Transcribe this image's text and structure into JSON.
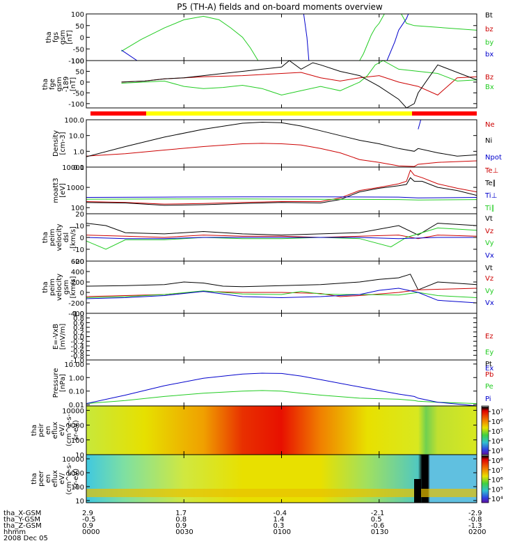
{
  "title": "P5 (TH-A) fields and on-board moments overview",
  "footer": {
    "rows": [
      {
        "label": "tha_X-GSM",
        "values": [
          "2.9",
          "1.7",
          "-0.4",
          "-2.1",
          "-2.9"
        ]
      },
      {
        "label": "tha_Y-GSM",
        "values": [
          "-0.5",
          "0.8",
          "1.4",
          "0.5",
          "-0.8"
        ]
      },
      {
        "label": "tha_Z-GSM",
        "values": [
          "0.9",
          "0.9",
          "0.3",
          "-0.6",
          "-1.3"
        ]
      },
      {
        "label": "hhmm",
        "values": [
          "0000",
          "0030",
          "0100",
          "0130",
          "0200"
        ]
      }
    ],
    "date": "2008 Dec 05"
  },
  "chart_data": [
    {
      "type": "line",
      "panel": 1,
      "ylabel": [
        "tha",
        "fgs",
        "gsm",
        "[nT]"
      ],
      "ylim": [
        -100,
        100
      ],
      "yticks": [
        "100",
        "50",
        "0",
        "-50",
        "-100"
      ],
      "series": [
        {
          "name": "Bt",
          "color": "#000000",
          "x": [
            0,
            100
          ],
          "y": [
            null,
            null
          ]
        },
        {
          "name": "bz",
          "color": "#cc0000",
          "x": [
            0,
            100
          ],
          "y": [
            null,
            null
          ]
        },
        {
          "name": "by",
          "color": "#22cc22",
          "x": [
            9,
            14,
            20,
            25,
            30,
            34,
            37,
            40,
            42,
            44,
            70,
            71,
            72,
            73,
            74,
            75,
            76,
            77,
            78,
            79,
            80,
            82,
            84,
            100
          ],
          "y": [
            -60,
            -10,
            40,
            75,
            90,
            75,
            40,
            0,
            -45,
            -100,
            -100,
            -70,
            -30,
            10,
            40,
            60,
            90,
            120,
            120,
            120,
            120,
            60,
            50,
            30
          ]
        },
        {
          "name": "bx",
          "color": "#0000cc",
          "x": [
            9,
            13,
            55,
            55.5,
            56,
            56.5,
            57,
            76,
            77,
            78,
            79,
            80,
            82,
            83,
            84,
            85,
            86,
            87,
            88,
            89,
            90
          ],
          "y": [
            -55,
            -100,
            null,
            120,
            60,
            0,
            -100,
            null,
            -100,
            -60,
            -20,
            30,
            80,
            120,
            null,
            null,
            null,
            null,
            null,
            null,
            null
          ]
        }
      ]
    },
    {
      "type": "line",
      "panel": 2,
      "ylabel": [
        "tha",
        "fge",
        "gsm",
        "-189",
        "[nT]"
      ],
      "ylim": [
        -120,
        100
      ],
      "yticks": [
        "100",
        "50",
        "0",
        "-50",
        "-100"
      ],
      "series": [
        {
          "name": "Bz",
          "color": "#cc0000",
          "x": [
            9,
            15,
            20,
            30,
            40,
            50,
            55,
            60,
            65,
            70,
            75,
            80,
            85,
            90,
            95,
            100
          ],
          "y": [
            0,
            5,
            15,
            25,
            30,
            40,
            45,
            20,
            5,
            20,
            30,
            0,
            -20,
            -60,
            20,
            25
          ]
        },
        {
          "name": "Bx",
          "color": "#22cc22",
          "x": [
            9,
            15,
            20,
            25,
            30,
            35,
            40,
            45,
            50,
            55,
            60,
            65,
            70,
            72,
            74,
            76,
            80,
            90,
            95,
            100
          ],
          "y": [
            -5,
            0,
            5,
            -20,
            -30,
            -25,
            -15,
            -30,
            -60,
            -40,
            -20,
            -40,
            0,
            30,
            80,
            100,
            60,
            40,
            5,
            10
          ]
        },
        {
          "name": "Bt",
          "color": "#000000",
          "x": [
            9,
            15,
            20,
            25,
            30,
            35,
            40,
            45,
            50,
            52,
            55,
            58,
            60,
            65,
            70,
            75,
            80,
            82,
            84,
            85,
            90,
            100
          ],
          "y": [
            0,
            5,
            15,
            20,
            30,
            40,
            50,
            60,
            70,
            100,
            60,
            90,
            80,
            50,
            30,
            -20,
            -80,
            -120,
            -100,
            -50,
            80,
            10
          ]
        }
      ]
    },
    {
      "type": "line",
      "panel": 3,
      "yscale": "log",
      "ylabel": [
        "Density",
        "[cm-3]"
      ],
      "ylim": [
        0.1,
        100
      ],
      "yticks": [
        "100.0",
        "10.0",
        "1.0",
        "0.1"
      ],
      "series": [
        {
          "name": "Ne",
          "color": "#cc0000",
          "x": [
            0,
            10,
            20,
            30,
            40,
            45,
            50,
            55,
            60,
            65,
            70,
            75,
            80,
            84,
            85,
            90,
            100
          ],
          "y": [
            0.5,
            0.7,
            1.2,
            2,
            3,
            3.2,
            3,
            2.5,
            1.5,
            0.8,
            0.3,
            0.2,
            0.12,
            0.11,
            0.15,
            0.2,
            0.25
          ]
        },
        {
          "name": "Ni",
          "color": "#000000",
          "x": [
            0,
            10,
            20,
            30,
            40,
            45,
            50,
            55,
            60,
            65,
            70,
            75,
            80,
            84,
            85,
            90,
            95,
            100
          ],
          "y": [
            0.45,
            2,
            8,
            25,
            60,
            70,
            65,
            40,
            20,
            10,
            5,
            3,
            1.5,
            1,
            1.5,
            0.8,
            0.5,
            0.6
          ]
        },
        {
          "name": "Npot",
          "color": "#0000cc",
          "x": [
            85,
            86
          ],
          "y": [
            25,
            200
          ]
        }
      ]
    },
    {
      "type": "line",
      "panel": 4,
      "yscale": "log",
      "ylabel": [
        "moatt3",
        "[eV]"
      ],
      "ylim": [
        50,
        10000
      ],
      "yticks": [
        "10000",
        "1000",
        "100"
      ],
      "series": [
        {
          "name": "Te⊥",
          "color": "#cc0000",
          "x": [
            0,
            10,
            20,
            30,
            40,
            50,
            60,
            65,
            70,
            75,
            80,
            82,
            83,
            84,
            86,
            90,
            95,
            100
          ],
          "y": [
            200,
            180,
            150,
            160,
            180,
            200,
            200,
            300,
            700,
            1000,
            1500,
            2000,
            7000,
            4000,
            3000,
            1500,
            900,
            600
          ]
        },
        {
          "name": "Te∥",
          "color": "#000000",
          "x": [
            0,
            10,
            20,
            30,
            40,
            50,
            60,
            65,
            70,
            75,
            80,
            82,
            83,
            84,
            86,
            90,
            95,
            100
          ],
          "y": [
            180,
            170,
            130,
            140,
            160,
            180,
            170,
            250,
            600,
            900,
            1200,
            1400,
            3000,
            2000,
            2000,
            1000,
            700,
            400
          ]
        },
        {
          "name": "Ti⊥",
          "color": "#0000cc",
          "x": [
            0,
            20,
            40,
            60,
            80,
            85,
            100
          ],
          "y": [
            320,
            330,
            340,
            340,
            330,
            300,
            320
          ]
        },
        {
          "name": "Ti∥",
          "color": "#22cc22",
          "x": [
            0,
            20,
            40,
            60,
            80,
            85,
            100
          ],
          "y": [
            260,
            270,
            270,
            260,
            250,
            240,
            250
          ]
        }
      ]
    },
    {
      "type": "line",
      "panel": 5,
      "ylabel": [
        "tha",
        "peim",
        "velocity",
        "dsl",
        "[km/s]"
      ],
      "ylim": [
        -20,
        20
      ],
      "yticks": [
        "20",
        "10",
        "0",
        "-10",
        "-20"
      ],
      "series": [
        {
          "name": "Vt",
          "color": "#000000",
          "x": [
            0,
            5,
            10,
            20,
            30,
            40,
            50,
            60,
            70,
            80,
            85,
            90,
            100
          ],
          "y": [
            12,
            10,
            4,
            3,
            5,
            3,
            2,
            3,
            4,
            10,
            2,
            12,
            10
          ]
        },
        {
          "name": "Vz",
          "color": "#cc0000",
          "x": [
            0,
            10,
            20,
            30,
            40,
            50,
            60,
            70,
            80,
            85,
            90,
            100
          ],
          "y": [
            2,
            1,
            0,
            2,
            1,
            1,
            0,
            1,
            2,
            -1,
            2,
            1
          ]
        },
        {
          "name": "Vy",
          "color": "#22cc22",
          "x": [
            0,
            5,
            10,
            20,
            30,
            40,
            50,
            60,
            70,
            78,
            82,
            90,
            100
          ],
          "y": [
            -3,
            -10,
            -2,
            -2,
            0,
            -1,
            -1,
            0,
            -1,
            -8,
            0,
            8,
            6
          ]
        },
        {
          "name": "Vx",
          "color": "#0000cc",
          "x": [
            0,
            10,
            20,
            30,
            40,
            50,
            60,
            70,
            80,
            90,
            100
          ],
          "y": [
            0,
            -1,
            -1,
            0,
            0,
            0,
            0,
            0,
            -1,
            0,
            0
          ]
        }
      ]
    },
    {
      "type": "line",
      "panel": 6,
      "ylabel": [
        "tha",
        "peim",
        "velocity",
        "gsm",
        "[km/s]"
      ],
      "ylim": [
        -400,
        600
      ],
      "yticks": [
        "600",
        "400",
        "200",
        "0",
        "-200",
        "-400"
      ],
      "series": [
        {
          "name": "Vt",
          "color": "#000000",
          "x": [
            0,
            10,
            20,
            25,
            30,
            35,
            40,
            50,
            60,
            70,
            75,
            80,
            83,
            85,
            90,
            100
          ],
          "y": [
            120,
            130,
            150,
            200,
            180,
            120,
            110,
            130,
            150,
            200,
            250,
            280,
            350,
            50,
            200,
            150
          ]
        },
        {
          "name": "Vz",
          "color": "#cc0000",
          "x": [
            0,
            10,
            20,
            30,
            40,
            50,
            60,
            65,
            70,
            80,
            85,
            90,
            100
          ],
          "y": [
            -80,
            -60,
            -40,
            20,
            0,
            0,
            -20,
            -80,
            -60,
            0,
            50,
            60,
            80
          ]
        },
        {
          "name": "Vy",
          "color": "#22cc22",
          "x": [
            0,
            10,
            20,
            30,
            40,
            50,
            55,
            60,
            65,
            70,
            80,
            85,
            90,
            100
          ],
          "y": [
            -100,
            -80,
            -40,
            30,
            -30,
            -40,
            20,
            -30,
            -40,
            -40,
            -50,
            0,
            -60,
            -100
          ]
        },
        {
          "name": "Vx",
          "color": "#0000cc",
          "x": [
            0,
            10,
            20,
            30,
            40,
            50,
            60,
            70,
            75,
            80,
            85,
            90,
            100
          ],
          "y": [
            -120,
            -100,
            -60,
            20,
            -80,
            -100,
            -80,
            -40,
            40,
            80,
            0,
            -150,
            -200
          ]
        }
      ]
    },
    {
      "type": "line",
      "panel": 7,
      "ylabel": [
        "E=-VxB",
        "[mV/m]"
      ],
      "ylim": [
        -1,
        1
      ],
      "yticks": [
        "1.0",
        "0.8",
        "0.6",
        "0.4",
        "0.2",
        "0.0",
        "-0.2",
        "-0.4",
        "-0.6",
        "-0.8",
        "-1.0"
      ],
      "series": [
        {
          "name": "Ez",
          "color": "#cc0000",
          "x": [
            0,
            100
          ],
          "y": [
            null,
            null
          ]
        },
        {
          "name": "Ey",
          "color": "#22cc22",
          "x": [
            0,
            100
          ],
          "y": [
            null,
            null
          ]
        },
        {
          "name": "Ex",
          "color": "#0000cc",
          "x": [
            0,
            100
          ],
          "y": [
            null,
            null
          ]
        }
      ]
    },
    {
      "type": "line",
      "panel": 8,
      "yscale": "log",
      "ylabel": [
        "Pressure",
        "[nPa]"
      ],
      "ylim": [
        0.008,
        20
      ],
      "yticks": [
        "10.00",
        "1.00",
        "0.10",
        "0.01"
      ],
      "series": [
        {
          "name": "Pt",
          "color": "#000000",
          "x": [
            0,
            100
          ],
          "y": [
            null,
            null
          ]
        },
        {
          "name": "Pb",
          "color": "#cc0000",
          "x": [
            0,
            100
          ],
          "y": [
            null,
            null
          ]
        },
        {
          "name": "Pe",
          "color": "#22cc22",
          "x": [
            0,
            10,
            20,
            30,
            40,
            45,
            50,
            55,
            60,
            70,
            80,
            84,
            85,
            90,
            100
          ],
          "y": [
            0.012,
            0.02,
            0.04,
            0.07,
            0.1,
            0.11,
            0.1,
            0.07,
            0.05,
            0.03,
            0.025,
            0.02,
            0.018,
            0.015,
            0.012
          ]
        },
        {
          "name": "Pi",
          "color": "#0000cc",
          "x": [
            0,
            10,
            20,
            30,
            40,
            45,
            50,
            55,
            60,
            70,
            80,
            84,
            85,
            90,
            100
          ],
          "y": [
            0.012,
            0.05,
            0.25,
            0.9,
            1.8,
            2.1,
            2,
            1.3,
            0.7,
            0.2,
            0.06,
            0.04,
            0.03,
            0.015,
            0.008
          ]
        }
      ]
    },
    {
      "type": "heatmap",
      "panel": 9,
      "yscale": "log",
      "ylabel": [
        "tha",
        "peir",
        "en",
        "eflux",
        "eV/",
        "(cm^2-s-",
        "sr-eV)"
      ],
      "ylim": [
        10,
        20000
      ],
      "yticks": [
        "10000",
        "1000",
        "100",
        "10"
      ],
      "colorbar": {
        "ticks": [
          "10⁷",
          "10⁶",
          "10⁵",
          "10⁴",
          "10³"
        ]
      }
    },
    {
      "type": "heatmap",
      "panel": 10,
      "yscale": "log",
      "ylabel": [
        "tha",
        "peer",
        "en",
        "eflux",
        "eV/",
        "(cm^2-s-",
        "sr-eV)"
      ],
      "ylim": [
        7,
        20000
      ],
      "yticks": [
        "10000",
        "1000",
        "100",
        "10"
      ],
      "colorbar": {
        "ticks": [
          "10⁸",
          "10⁷",
          "10⁶",
          "10⁵",
          "10⁴"
        ]
      }
    }
  ]
}
